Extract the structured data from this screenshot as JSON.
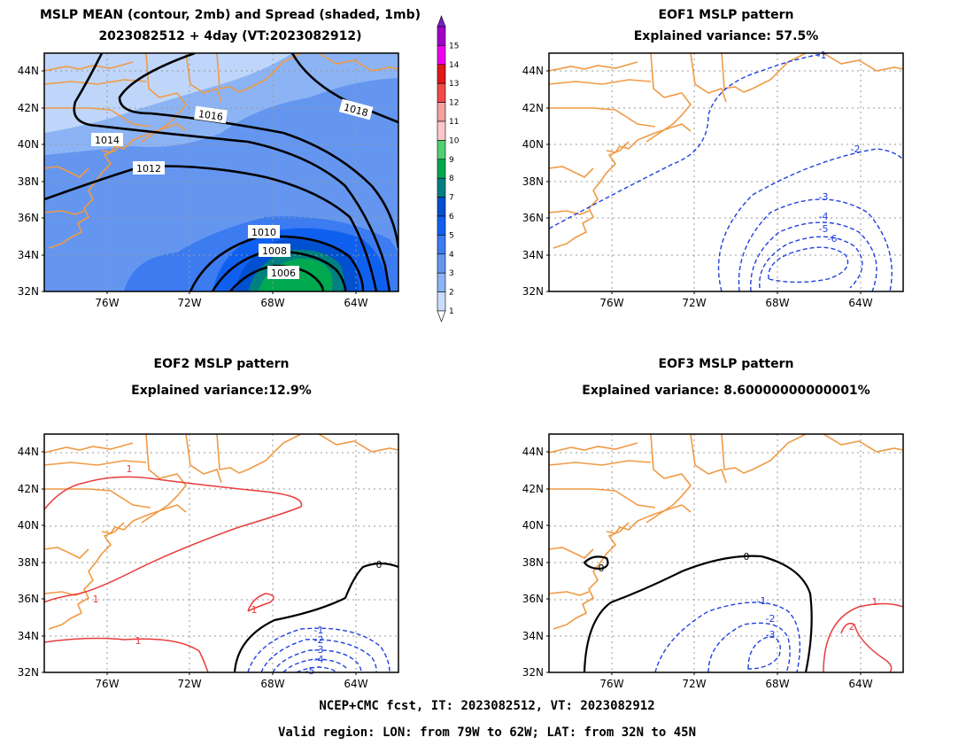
{
  "panels": {
    "mean": {
      "title1": "MSLP MEAN (contour, 2mb) and Spread (shaded, 1mb)",
      "title2": "2023082512 + 4day (VT:2023082912)",
      "contour_labels": [
        "1018",
        "1016",
        "1014",
        "1012",
        "1010",
        "1008",
        "1006"
      ]
    },
    "eof1": {
      "title1": "EOF1 MSLP pattern",
      "title2": "Explained variance: 57.5%",
      "contour_labels": [
        "-1",
        "-2",
        "-3",
        "-4",
        "-5",
        "-6"
      ]
    },
    "eof2": {
      "title1": "EOF2 MSLP pattern",
      "title2": "Explained variance:12.9%",
      "contour_labels": [
        "1",
        "1",
        "1",
        "1",
        "0",
        "-1",
        "-2",
        "-3",
        "-4",
        "-5"
      ]
    },
    "eof3": {
      "title1": "EOF3 MSLP pattern",
      "title2": "Explained variance: 8.60000000000001%",
      "contour_labels": [
        "0",
        "0",
        "-1",
        "-2",
        "-3",
        "1",
        "2"
      ]
    }
  },
  "axes": {
    "lat_labels": [
      "44N",
      "42N",
      "40N",
      "38N",
      "36N",
      "34N",
      "32N"
    ],
    "lon_labels": [
      "76W",
      "72W",
      "68W",
      "64W"
    ]
  },
  "colorbar": {
    "labels": [
      "15",
      "14",
      "13",
      "12",
      "11",
      "10",
      "9",
      "8",
      "7",
      "6",
      "5",
      "4",
      "3",
      "2",
      "1"
    ],
    "colors": [
      "#a000c8",
      "#f000f0",
      "#e01818",
      "#f04a4a",
      "#f0a0a0",
      "#ffc8c8",
      "#50d070",
      "#00a850",
      "#008080",
      "#0050d0",
      "#1060f0",
      "#3c7cf0",
      "#6496f0",
      "#8cb4f4",
      "#c8dcfa"
    ]
  },
  "footer": {
    "line1": "NCEP+CMC fcst, IT: 2023082512, VT: 2023082912",
    "line2": "Valid region: LON: from 79W to 62W; LAT: from 32N to 45N"
  },
  "colors": {
    "coast": "#f09a44",
    "negative": "#2040e0",
    "positive": "#e83c3c",
    "zero": "#000000",
    "grid": "#999999"
  }
}
